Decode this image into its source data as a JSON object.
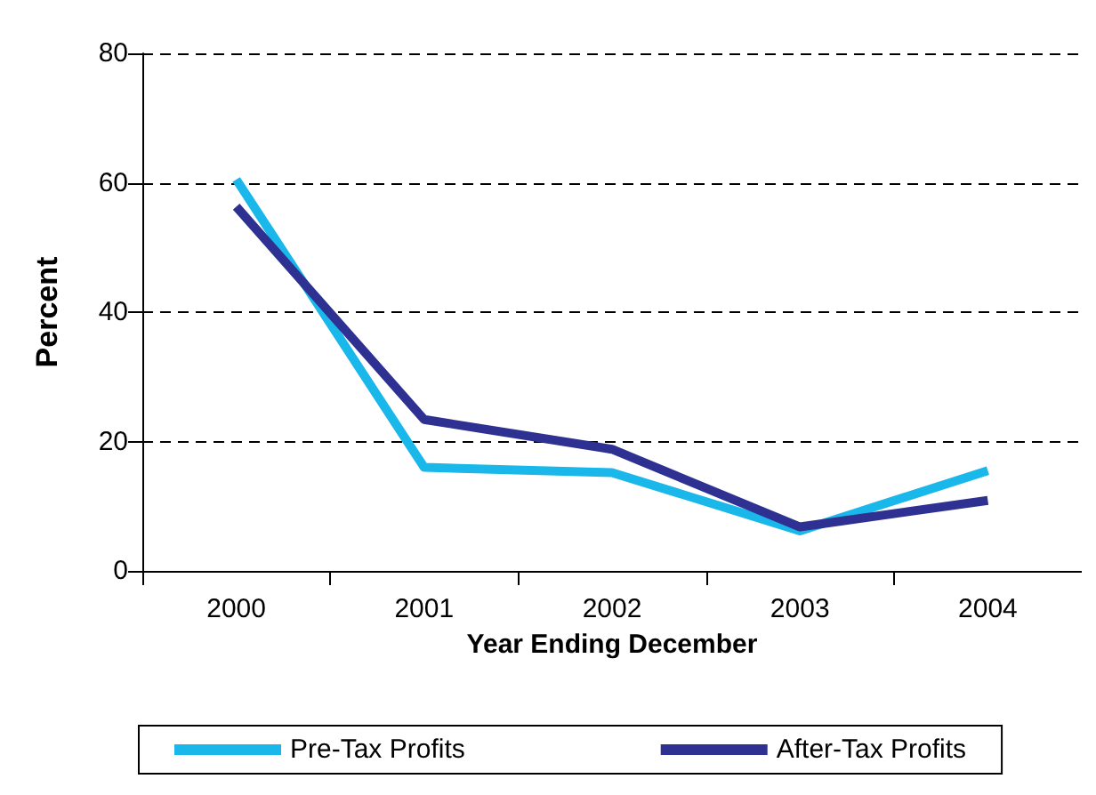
{
  "chart_data": {
    "type": "line",
    "xlabel": "Year Ending December",
    "ylabel": "Percent",
    "categories": [
      "2000",
      "2001",
      "2002",
      "2003",
      "2004"
    ],
    "series": [
      {
        "name": "Pre-Tax Profits",
        "color": "#1ab7ea",
        "values": [
          60.5,
          16,
          15.2,
          6.2,
          15.5
        ]
      },
      {
        "name": "After-Tax Profits",
        "color": "#2e3192",
        "values": [
          56.3,
          23.4,
          18.8,
          6.8,
          10.9
        ]
      }
    ],
    "ylim": [
      0,
      80
    ],
    "yticks": [
      0,
      20,
      40,
      60,
      80
    ],
    "grid": "y",
    "legend": "bottom",
    "marker": "none",
    "line_style": "solid"
  }
}
